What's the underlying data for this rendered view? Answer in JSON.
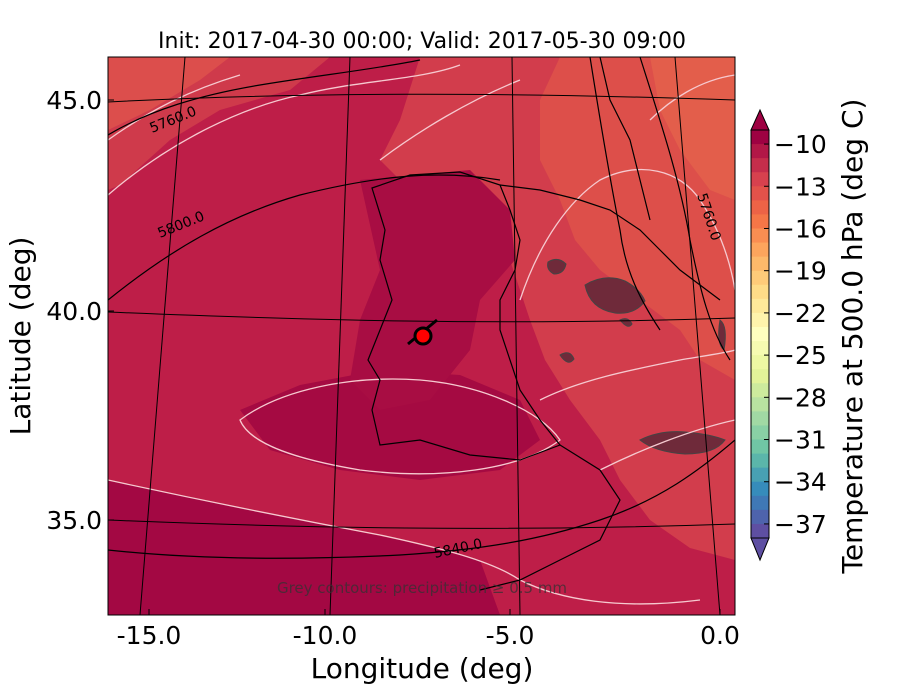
{
  "title": "Init: 2017-04-30 00:00; Valid: 2017-05-30 09:00",
  "xlabel": "Longitude (deg)",
  "ylabel": "Latitude (deg)",
  "x_ticks": [
    "-15.0",
    "-10.0",
    "-5.0",
    "0.0"
  ],
  "y_ticks": [
    "45.0",
    "40.0",
    "35.0"
  ],
  "colorbar": {
    "label": "Temperature at 500.0 hPa (deg C)",
    "ticks": [
      "−10",
      "−13",
      "−16",
      "−19",
      "−22",
      "−25",
      "−28",
      "−31",
      "−34",
      "−37"
    ],
    "min": -38,
    "max": -9,
    "extend": "both",
    "colormap": "Spectral"
  },
  "contour_labels": [
    "5760.0",
    "5800.0",
    "5840.0",
    "5760.0"
  ],
  "annotation": "Grey contours: precipitation ≥ 0.5 mm",
  "marker": {
    "label": "location",
    "lon": -7.8,
    "lat": 39.3
  },
  "colors": {
    "warm_dark": "#9e0142",
    "warm_mid": "#be1e48",
    "warm_light": "#d53e4f",
    "orange": "#e8604a"
  }
}
